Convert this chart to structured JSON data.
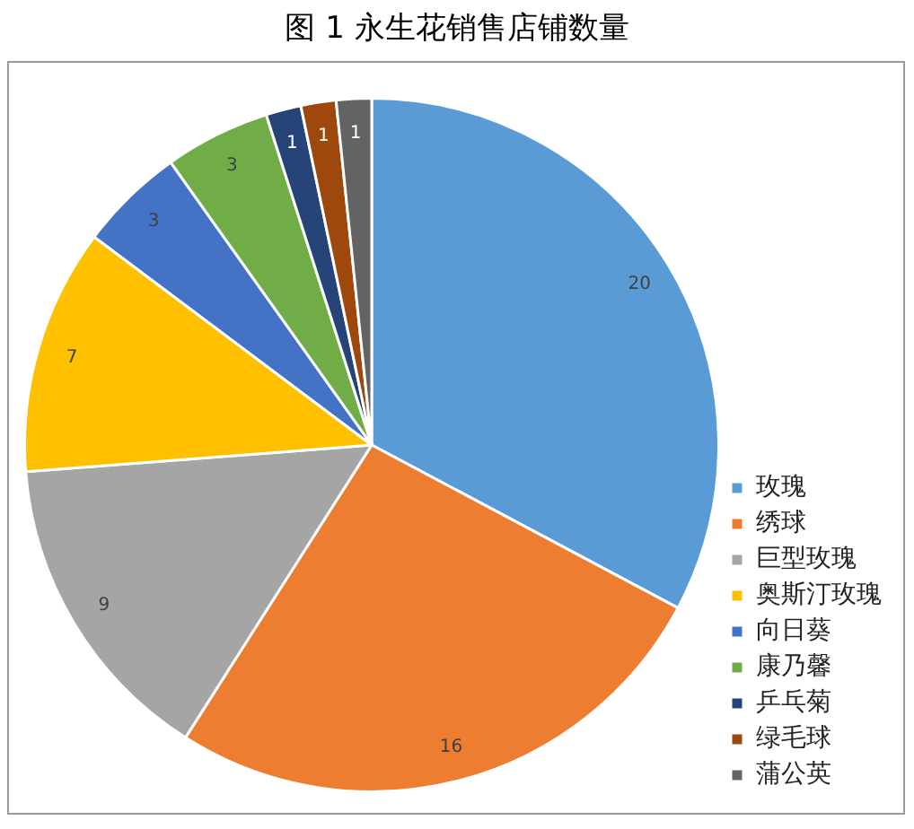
{
  "chart_data": {
    "type": "pie",
    "title": "图 1  永生花销售店铺数量",
    "categories": [
      "玫瑰",
      "绣球",
      "巨型玫瑰",
      "奥斯汀玫瑰",
      "向日葵",
      "康乃馨",
      "乒乓菊",
      "绿毛球",
      "蒲公英"
    ],
    "values": [
      20,
      16,
      9,
      7,
      3,
      3,
      1,
      1,
      1
    ],
    "colors": [
      "#5b9bd5",
      "#ed7d31",
      "#a5a5a5",
      "#ffc000",
      "#4472c4",
      "#70ad47",
      "#264478",
      "#9e480e",
      "#636363"
    ],
    "data_labels": true,
    "legend": "right"
  }
}
